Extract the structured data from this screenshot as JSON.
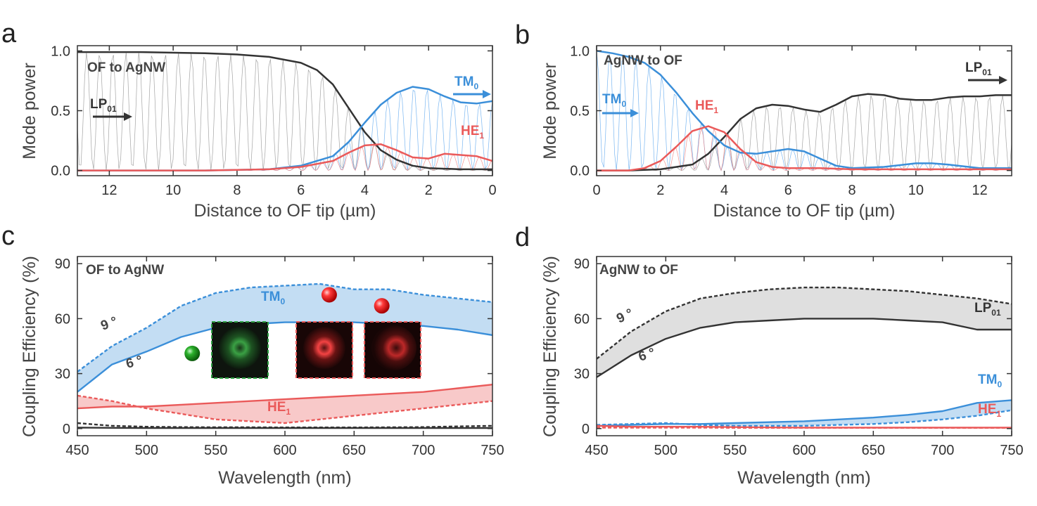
{
  "colors": {
    "black": "#333333",
    "blue": "#3b8fd9",
    "blue_fill": "#bcd9f2",
    "red": "#ea5a5a",
    "red_fill": "#f7c3c3",
    "gray_fill": "#dcdcdc",
    "green": "#2ea043"
  },
  "chart_data": [
    {
      "panel": "a",
      "type": "line",
      "xlabel": "Distance to OF tip (µm)",
      "ylabel": "Mode power",
      "xlim": [
        13,
        0
      ],
      "ylim": [
        0,
        1.0
      ],
      "x_ticks": [
        12,
        10,
        8,
        6,
        4,
        2,
        0
      ],
      "y_ticks": [
        0.0,
        0.5,
        1.0
      ],
      "annotations": [
        {
          "text": "OF to AgNW",
          "sub": ""
        },
        {
          "text": "LP",
          "sub": "01"
        },
        {
          "text": "TM",
          "sub": "0"
        },
        {
          "text": "HE",
          "sub": "1"
        }
      ],
      "series": [
        {
          "color": "black",
          "x": [
            13,
            11,
            9,
            8,
            7,
            6,
            5.5,
            5,
            4.5,
            4,
            3.5,
            3,
            2.5,
            2,
            1,
            0
          ],
          "y": [
            0.99,
            0.99,
            0.98,
            0.97,
            0.95,
            0.9,
            0.84,
            0.72,
            0.52,
            0.32,
            0.17,
            0.09,
            0.04,
            0.02,
            0.01,
            0.01
          ]
        },
        {
          "color": "blue",
          "x": [
            13,
            9,
            7,
            6,
            5,
            4.5,
            4,
            3.5,
            3,
            2.5,
            2,
            1.5,
            1,
            0.5,
            0
          ],
          "y": [
            0.0,
            0.0,
            0.01,
            0.04,
            0.12,
            0.24,
            0.4,
            0.55,
            0.65,
            0.7,
            0.68,
            0.62,
            0.57,
            0.56,
            0.58
          ]
        },
        {
          "color": "red",
          "x": [
            13,
            9,
            7,
            6,
            5,
            4.5,
            4,
            3.5,
            3,
            2.5,
            2,
            1.5,
            1,
            0.5,
            0
          ],
          "y": [
            0.0,
            0.0,
            0.01,
            0.03,
            0.08,
            0.15,
            0.21,
            0.22,
            0.17,
            0.11,
            0.1,
            0.14,
            0.13,
            0.12,
            0.08
          ]
        }
      ]
    },
    {
      "panel": "b",
      "type": "line",
      "xlabel": "Distance to OF tip (µm)",
      "ylabel": "Mode power",
      "xlim": [
        0,
        13
      ],
      "ylim": [
        0,
        1.0
      ],
      "x_ticks": [
        0,
        2,
        4,
        6,
        8,
        10,
        12
      ],
      "y_ticks": [
        0.0,
        0.5,
        1.0
      ],
      "annotations": [
        {
          "text": "AgNW to OF",
          "sub": ""
        },
        {
          "text": "LP",
          "sub": "01"
        },
        {
          "text": "TM",
          "sub": "0"
        },
        {
          "text": "HE",
          "sub": "1"
        }
      ],
      "series": [
        {
          "color": "black",
          "x": [
            0,
            1,
            2,
            3,
            3.5,
            4,
            4.5,
            5,
            5.5,
            6,
            6.5,
            7,
            7.5,
            8,
            8.5,
            9,
            9.5,
            10,
            10.5,
            11,
            11.5,
            12,
            12.5,
            13
          ],
          "y": [
            0.0,
            0.0,
            0.01,
            0.05,
            0.14,
            0.28,
            0.43,
            0.52,
            0.55,
            0.54,
            0.51,
            0.49,
            0.55,
            0.62,
            0.64,
            0.63,
            0.6,
            0.59,
            0.59,
            0.61,
            0.62,
            0.62,
            0.63,
            0.63
          ]
        },
        {
          "color": "blue",
          "x": [
            0,
            0.5,
            1,
            1.5,
            2,
            2.5,
            3,
            3.5,
            4,
            4.5,
            5,
            5.5,
            6,
            6.5,
            7,
            7.5,
            8,
            9,
            10,
            10.5,
            11,
            12,
            13
          ],
          "y": [
            1.0,
            0.98,
            0.95,
            0.9,
            0.8,
            0.65,
            0.48,
            0.33,
            0.21,
            0.15,
            0.14,
            0.16,
            0.18,
            0.16,
            0.1,
            0.04,
            0.02,
            0.03,
            0.06,
            0.06,
            0.05,
            0.02,
            0.02
          ]
        },
        {
          "color": "red",
          "x": [
            0,
            1,
            1.5,
            2,
            2.5,
            3,
            3.5,
            4,
            4.5,
            5,
            5.5,
            6,
            7,
            8,
            9,
            10,
            11,
            12,
            13
          ],
          "y": [
            0.0,
            0.0,
            0.02,
            0.08,
            0.2,
            0.33,
            0.37,
            0.32,
            0.18,
            0.07,
            0.03,
            0.02,
            0.02,
            0.01,
            0.01,
            0.01,
            0.01,
            0.01,
            0.01
          ]
        }
      ]
    },
    {
      "panel": "c",
      "type": "area",
      "xlabel": "Wavelength (nm)",
      "ylabel": "Coupling Efficiency (%)",
      "xlim": [
        450,
        750
      ],
      "ylim": [
        0,
        90
      ],
      "x_ticks": [
        450,
        500,
        550,
        600,
        650,
        700,
        750
      ],
      "y_ticks": [
        0,
        30,
        60,
        90
      ],
      "annotations": [
        {
          "text": "OF to AgNW",
          "sub": ""
        },
        {
          "text": "TM",
          "sub": "0"
        },
        {
          "text": "HE",
          "sub": "1"
        },
        {
          "text": "9 °",
          "sub": ""
        },
        {
          "text": "6 °",
          "sub": ""
        }
      ],
      "x": [
        450,
        475,
        500,
        525,
        550,
        575,
        600,
        625,
        650,
        675,
        700,
        725,
        750
      ],
      "series": [
        {
          "color": "blue",
          "style": "dashed",
          "values": [
            31,
            45,
            55,
            67,
            74,
            77,
            78,
            79,
            76,
            76,
            73,
            71,
            69
          ]
        },
        {
          "color": "blue",
          "style": "solid",
          "values": [
            20,
            35,
            42,
            50,
            55,
            57,
            58,
            58,
            58,
            57,
            56,
            54,
            51
          ]
        },
        {
          "color": "red",
          "style": "solid",
          "values": [
            11,
            12,
            12,
            13,
            14,
            15,
            16,
            17,
            18,
            19,
            20,
            22,
            24
          ]
        },
        {
          "color": "red",
          "style": "dashed",
          "values": [
            18,
            15,
            11,
            8,
            5,
            4,
            3,
            5,
            7,
            9,
            11,
            13,
            15
          ]
        },
        {
          "color": "black",
          "style": "dashed",
          "values": [
            3,
            1.5,
            1,
            0.8,
            0.7,
            0.7,
            0.6,
            0.6,
            0.6,
            0.7,
            0.8,
            1.2,
            1.5
          ]
        },
        {
          "color": "black",
          "style": "solid",
          "values": [
            0.5,
            0.4,
            0.3,
            0.3,
            0.3,
            0.3,
            0.3,
            0.3,
            0.3,
            0.3,
            0.3,
            0.3,
            0.3
          ]
        }
      ],
      "markers": [
        {
          "color": "green",
          "x": 533,
          "y": 41
        },
        {
          "color": "red",
          "x": 632,
          "y": 73
        },
        {
          "color": "red",
          "x": 670,
          "y": 67
        }
      ]
    },
    {
      "panel": "d",
      "type": "area",
      "xlabel": "Wavelength (nm)",
      "ylabel": "Coupling Efficiency (%)",
      "xlim": [
        450,
        750
      ],
      "ylim": [
        0,
        90
      ],
      "x_ticks": [
        450,
        500,
        550,
        600,
        650,
        700,
        750
      ],
      "y_ticks": [
        0,
        30,
        60,
        90
      ],
      "annotations": [
        {
          "text": "AgNW to OF",
          "sub": ""
        },
        {
          "text": "LP",
          "sub": "01"
        },
        {
          "text": "TM",
          "sub": "0"
        },
        {
          "text": "HE",
          "sub": "1"
        },
        {
          "text": "9 °",
          "sub": ""
        },
        {
          "text": "6 °",
          "sub": ""
        }
      ],
      "x": [
        450,
        475,
        500,
        525,
        550,
        575,
        600,
        625,
        650,
        675,
        700,
        725,
        750
      ],
      "series": [
        {
          "color": "black",
          "style": "dashed",
          "values": [
            38,
            53,
            64,
            71,
            74,
            76,
            77,
            77,
            76,
            75,
            73,
            71,
            68
          ]
        },
        {
          "color": "black",
          "style": "solid",
          "values": [
            28,
            40,
            49,
            55,
            58,
            59,
            60,
            60,
            60,
            59,
            58,
            54,
            54
          ]
        },
        {
          "color": "blue",
          "style": "solid",
          "values": [
            1.5,
            2,
            2.5,
            2.5,
            3,
            3.5,
            4,
            5,
            6,
            7.5,
            9.5,
            14,
            15.5
          ]
        },
        {
          "color": "blue",
          "style": "dashed",
          "values": [
            2,
            2.5,
            3,
            2,
            1.5,
            1.5,
            1.5,
            2,
            2.5,
            3.5,
            5,
            7,
            10
          ]
        },
        {
          "color": "red",
          "style": "solid",
          "values": [
            1.5,
            1,
            1,
            1,
            0.8,
            0.6,
            0.5,
            0.5,
            0.5,
            0.5,
            0.5,
            0.5,
            0.5
          ]
        },
        {
          "color": "red",
          "style": "dashed",
          "values": [
            0.5,
            0.5,
            0.5,
            0.5,
            0.4,
            0.4,
            0.4,
            0.4,
            0.4,
            0.4,
            0.4,
            0.4,
            0.4
          ]
        }
      ]
    }
  ]
}
